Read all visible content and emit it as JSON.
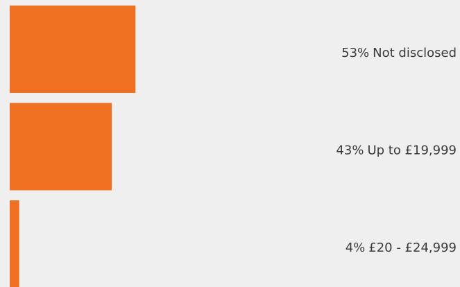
{
  "chart_data": {
    "type": "bar",
    "categories": [
      "Not disclosed",
      "Up to £19,999",
      "£20 - £24,999"
    ],
    "values": [
      53,
      43,
      4
    ],
    "value_labels": [
      "53%",
      "43%",
      "4%"
    ],
    "color": "#f07022"
  }
}
